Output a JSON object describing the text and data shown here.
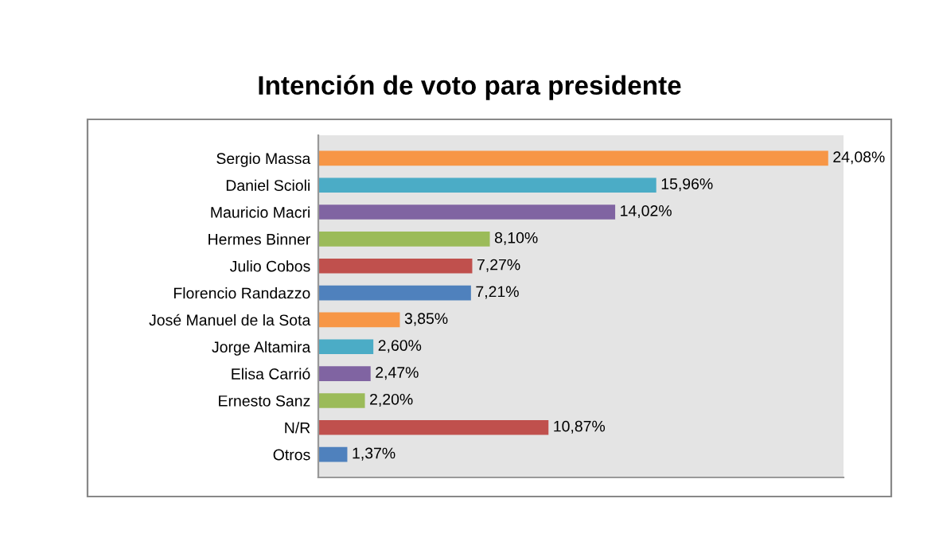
{
  "chart_data": {
    "type": "bar",
    "orientation": "horizontal",
    "title": "Intención de voto para presidente",
    "categories": [
      "Sergio Massa",
      "Daniel Scioli",
      "Mauricio Macri",
      "Hermes Binner",
      "Julio Cobos",
      "Florencio Randazzo",
      "José Manuel de la Sota",
      "Jorge Altamira",
      "Elisa Carrió",
      "Ernesto Sanz",
      "N/R",
      "Otros"
    ],
    "values": [
      24.08,
      15.96,
      14.02,
      8.1,
      7.27,
      7.21,
      3.85,
      2.6,
      2.47,
      2.2,
      10.87,
      1.37
    ],
    "value_labels": [
      "24,08%",
      "15,96%",
      "14,02%",
      "8,10%",
      "7,27%",
      "7,21%",
      "3,85%",
      "2,60%",
      "2,47%",
      "2,20%",
      "10,87%",
      "1,37%"
    ],
    "colors": [
      "#f79646",
      "#4bacc6",
      "#8064a2",
      "#9bbb59",
      "#c0504d",
      "#4f81bd",
      "#f79646",
      "#4bacc6",
      "#8064a2",
      "#9bbb59",
      "#c0504d",
      "#4f81bd"
    ],
    "grid": false,
    "legend": false
  }
}
